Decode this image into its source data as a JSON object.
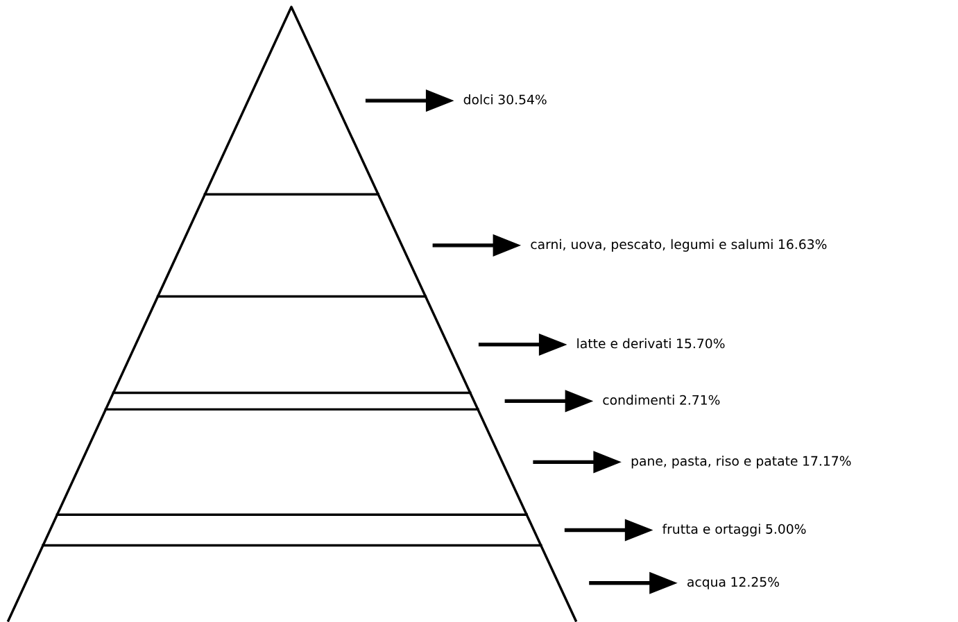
{
  "chart_data": {
    "type": "other",
    "categories": [
      "dolci",
      "carni, uova, pescato, legumi e salumi",
      "latte e derivati",
      "condimenti",
      "pane, pasta, riso e patate",
      "frutta e ortaggi",
      "acqua"
    ],
    "values": [
      30.54,
      16.63,
      15.7,
      2.71,
      17.17,
      5.0,
      12.25
    ],
    "value_labels": [
      "30.54%",
      "16.63%",
      "15.70%",
      "2.71%",
      "17.17%",
      "5.00%",
      "12.25%"
    ],
    "color": "#000000"
  }
}
